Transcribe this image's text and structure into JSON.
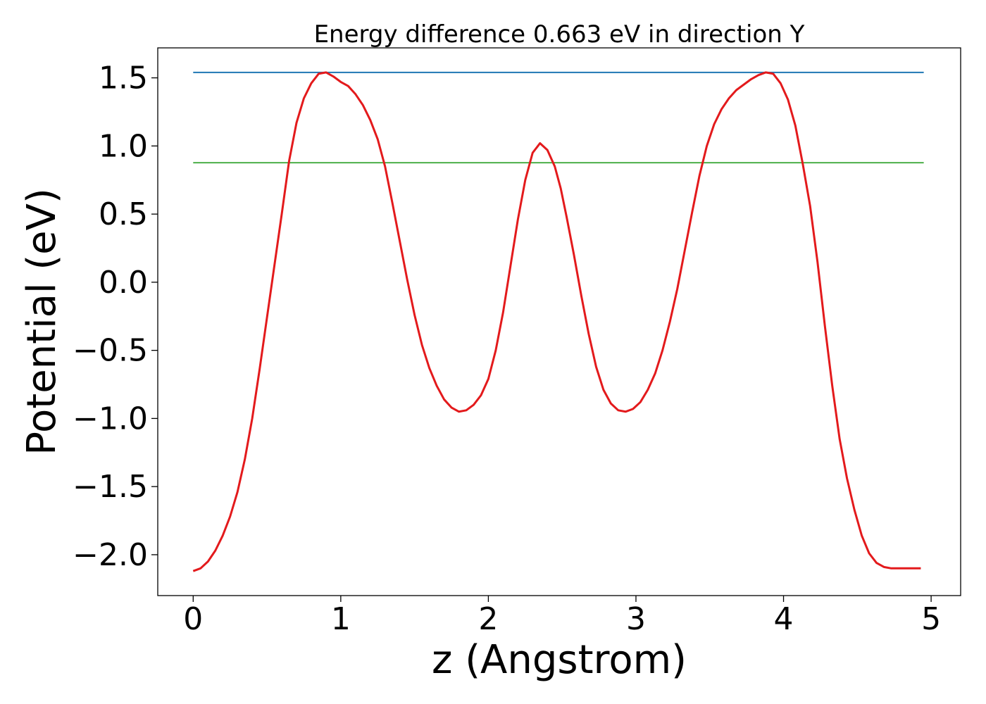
{
  "chart_data": {
    "type": "line",
    "title": "Energy difference 0.663 eV in direction Y",
    "xlabel": "z (Angstrom)",
    "ylabel": "Potential (eV)",
    "xlim": [
      -0.24,
      5.2
    ],
    "ylim": [
      -2.3,
      1.72
    ],
    "xticks": [
      0,
      1,
      2,
      3,
      4,
      5
    ],
    "xtick_labels": [
      "0",
      "1",
      "2",
      "3",
      "4",
      "5"
    ],
    "yticks": [
      1.5,
      1.0,
      0.5,
      0.0,
      -0.5,
      -1.0,
      -1.5,
      -2.0
    ],
    "ytick_labels": [
      "1.5",
      "1.0",
      "0.5",
      "0.0",
      "−0.5",
      "−1.0",
      "−1.5",
      "−2.0"
    ],
    "grid": false,
    "colors": {
      "potential": "#e31a1c",
      "max_line": "#1f77b4",
      "mean_line": "#4daf4a"
    },
    "series": [
      {
        "key": "potential",
        "x": [
          0.0,
          0.05,
          0.1,
          0.15,
          0.2,
          0.25,
          0.3,
          0.35,
          0.4,
          0.45,
          0.5,
          0.55,
          0.6,
          0.65,
          0.7,
          0.75,
          0.8,
          0.85,
          0.9,
          0.95,
          1.0,
          1.05,
          1.1,
          1.15,
          1.2,
          1.25,
          1.3,
          1.35,
          1.4,
          1.45,
          1.5,
          1.55,
          1.6,
          1.65,
          1.7,
          1.75,
          1.8,
          1.85,
          1.9,
          1.95,
          2.0,
          2.05,
          2.1,
          2.15,
          2.2,
          2.25,
          2.3,
          2.35,
          2.4,
          2.45,
          2.49,
          2.53,
          2.58,
          2.63,
          2.68,
          2.73,
          2.78,
          2.83,
          2.88,
          2.93,
          2.98,
          3.03,
          3.08,
          3.13,
          3.18,
          3.23,
          3.28,
          3.33,
          3.38,
          3.43,
          3.48,
          3.53,
          3.58,
          3.63,
          3.68,
          3.73,
          3.78,
          3.83,
          3.88,
          3.93,
          3.98,
          4.03,
          4.08,
          4.13,
          4.18,
          4.23,
          4.28,
          4.33,
          4.38,
          4.43,
          4.48,
          4.53,
          4.58,
          4.63,
          4.68,
          4.73,
          4.78,
          4.83,
          4.88,
          4.93
        ],
        "y": [
          -2.12,
          -2.1,
          -2.05,
          -1.97,
          -1.86,
          -1.72,
          -1.54,
          -1.3,
          -1.0,
          -0.64,
          -0.26,
          0.12,
          0.5,
          0.89,
          1.17,
          1.35,
          1.46,
          1.53,
          1.54,
          1.51,
          1.47,
          1.44,
          1.38,
          1.3,
          1.19,
          1.05,
          0.85,
          0.58,
          0.3,
          0.02,
          -0.24,
          -0.46,
          -0.63,
          -0.76,
          -0.86,
          -0.92,
          -0.95,
          -0.94,
          -0.9,
          -0.83,
          -0.71,
          -0.5,
          -0.22,
          0.12,
          0.46,
          0.75,
          0.95,
          1.02,
          0.97,
          0.85,
          0.69,
          0.48,
          0.2,
          -0.1,
          -0.38,
          -0.62,
          -0.79,
          -0.89,
          -0.94,
          -0.95,
          -0.93,
          -0.88,
          -0.79,
          -0.67,
          -0.5,
          -0.29,
          -0.05,
          0.23,
          0.51,
          0.78,
          1.0,
          1.16,
          1.27,
          1.35,
          1.41,
          1.45,
          1.49,
          1.52,
          1.54,
          1.53,
          1.46,
          1.34,
          1.15,
          0.87,
          0.56,
          0.15,
          -0.32,
          -0.76,
          -1.15,
          -1.44,
          -1.67,
          -1.86,
          -1.99,
          -2.06,
          -2.09,
          -2.1,
          -2.1,
          -2.1,
          -2.1,
          -2.1
        ]
      },
      {
        "key": "max_line",
        "x": [
          0.0,
          4.95
        ],
        "y": [
          1.54,
          1.54
        ]
      },
      {
        "key": "mean_line",
        "x": [
          0.0,
          4.95
        ],
        "y": [
          0.877,
          0.877
        ]
      }
    ]
  }
}
